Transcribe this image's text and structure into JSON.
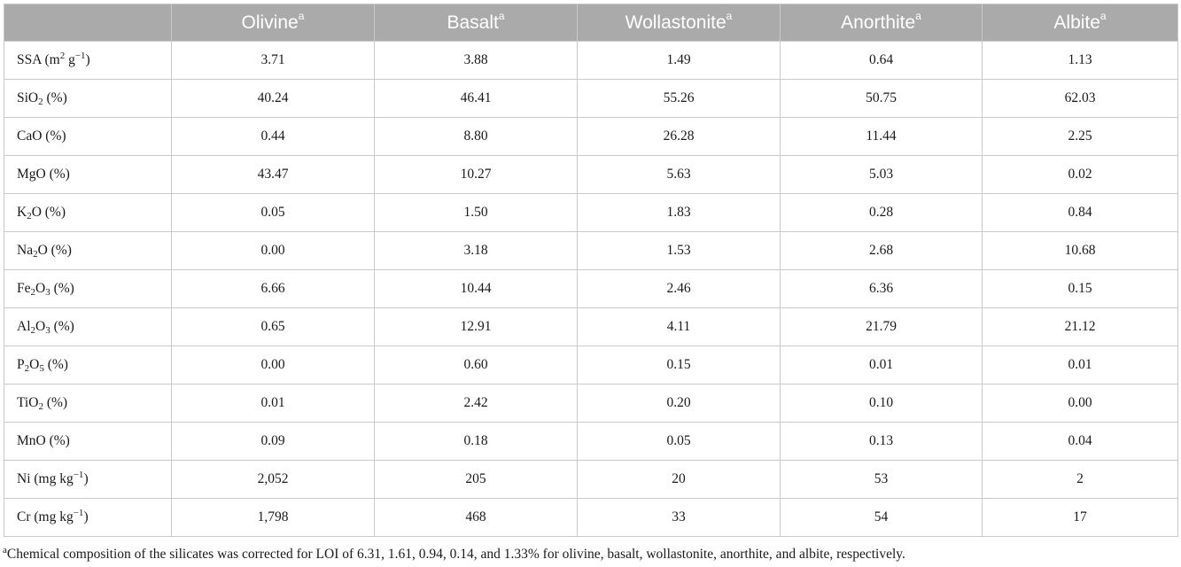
{
  "table": {
    "superscript_marker": "a",
    "columns": [
      {
        "key": "blank",
        "label": ""
      },
      {
        "key": "olivine",
        "label": "Olivine"
      },
      {
        "key": "basalt",
        "label": "Basalt"
      },
      {
        "key": "wollastonite",
        "label": "Wollastonite"
      },
      {
        "key": "anorthite",
        "label": "Anorthite"
      },
      {
        "key": "albite",
        "label": "Albite"
      }
    ],
    "rows": [
      {
        "label_parts": [
          [
            "t",
            "SSA (m"
          ],
          [
            "sup",
            "2"
          ],
          [
            "t",
            " g"
          ],
          [
            "sup",
            "−1"
          ],
          [
            "t",
            ")"
          ]
        ],
        "values": [
          "3.71",
          "3.88",
          "1.49",
          "0.64",
          "1.13"
        ]
      },
      {
        "label_parts": [
          [
            "t",
            "SiO"
          ],
          [
            "sub",
            "2"
          ],
          [
            "t",
            " (%)"
          ]
        ],
        "values": [
          "40.24",
          "46.41",
          "55.26",
          "50.75",
          "62.03"
        ]
      },
      {
        "label_parts": [
          [
            "t",
            "CaO (%)"
          ]
        ],
        "values": [
          "0.44",
          "8.80",
          "26.28",
          "11.44",
          "2.25"
        ]
      },
      {
        "label_parts": [
          [
            "t",
            "MgO (%)"
          ]
        ],
        "values": [
          "43.47",
          "10.27",
          "5.63",
          "5.03",
          "0.02"
        ]
      },
      {
        "label_parts": [
          [
            "t",
            "K"
          ],
          [
            "sub",
            "2"
          ],
          [
            "t",
            "O (%)"
          ]
        ],
        "values": [
          "0.05",
          "1.50",
          "1.83",
          "0.28",
          "0.84"
        ]
      },
      {
        "label_parts": [
          [
            "t",
            "Na"
          ],
          [
            "sub",
            "2"
          ],
          [
            "t",
            "O (%)"
          ]
        ],
        "values": [
          "0.00",
          "3.18",
          "1.53",
          "2.68",
          "10.68"
        ]
      },
      {
        "label_parts": [
          [
            "t",
            "Fe"
          ],
          [
            "sub",
            "2"
          ],
          [
            "t",
            "O"
          ],
          [
            "sub",
            "3"
          ],
          [
            "t",
            " (%)"
          ]
        ],
        "values": [
          "6.66",
          "10.44",
          "2.46",
          "6.36",
          "0.15"
        ]
      },
      {
        "label_parts": [
          [
            "t",
            "Al"
          ],
          [
            "sub",
            "2"
          ],
          [
            "t",
            "O"
          ],
          [
            "sub",
            "3"
          ],
          [
            "t",
            " (%)"
          ]
        ],
        "values": [
          "0.65",
          "12.91",
          "4.11",
          "21.79",
          "21.12"
        ]
      },
      {
        "label_parts": [
          [
            "t",
            "P"
          ],
          [
            "sub",
            "2"
          ],
          [
            "t",
            "O"
          ],
          [
            "sub",
            "5"
          ],
          [
            "t",
            " (%)"
          ]
        ],
        "values": [
          "0.00",
          "0.60",
          "0.15",
          "0.01",
          "0.01"
        ]
      },
      {
        "label_parts": [
          [
            "t",
            "TiO"
          ],
          [
            "sub",
            "2"
          ],
          [
            "t",
            " (%)"
          ]
        ],
        "values": [
          "0.01",
          "2.42",
          "0.20",
          "0.10",
          "0.00"
        ]
      },
      {
        "label_parts": [
          [
            "t",
            "MnO (%)"
          ]
        ],
        "values": [
          "0.09",
          "0.18",
          "0.05",
          "0.13",
          "0.04"
        ]
      },
      {
        "label_parts": [
          [
            "t",
            "Ni (mg kg"
          ],
          [
            "sup",
            "−1"
          ],
          [
            "t",
            ")"
          ]
        ],
        "values": [
          "2,052",
          "205",
          "20",
          "53",
          "2"
        ]
      },
      {
        "label_parts": [
          [
            "t",
            "Cr (mg kg"
          ],
          [
            "sup",
            "−1"
          ],
          [
            "t",
            ")"
          ]
        ],
        "values": [
          "1,798",
          "468",
          "33",
          "54",
          "17"
        ]
      }
    ]
  },
  "footnote": {
    "marker": "a",
    "text": "Chemical composition of the silicates was corrected for LOI of 6.31, 1.61, 0.94, 0.14, and 1.33% for olivine, basalt, wollastonite, anorthite, and albite, respectively."
  },
  "colors": {
    "header_background": "#aaaaaa",
    "header_text": "#ffffff",
    "grid_lines": "#c9c9c9",
    "body_text": "#1a1a1a"
  }
}
